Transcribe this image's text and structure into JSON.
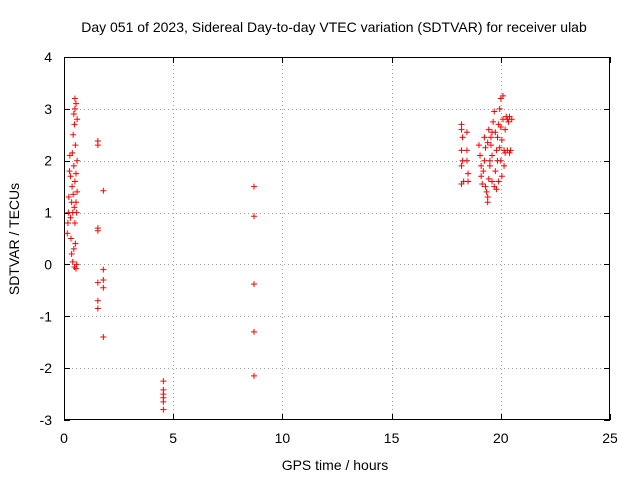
{
  "chart_data": {
    "type": "scatter",
    "title": "Day 051 of 2023, Sidereal Day-to-day VTEC variation (SDTVAR) for receiver ulab",
    "xlabel": "GPS time / hours",
    "ylabel": "SDTVAR / TECUs",
    "xlim": [
      0,
      25
    ],
    "ylim": [
      -3,
      4
    ],
    "xticks": [
      "0",
      "5",
      "10",
      "15",
      "20",
      "25"
    ],
    "yticks": [
      "-3",
      "-2",
      "-1",
      "0",
      "1",
      "2",
      "3",
      "4"
    ],
    "grid": true,
    "marker": "+",
    "color": "#ff0000",
    "series": [
      {
        "name": "SDTVAR",
        "points": [
          [
            0.15,
            0.6
          ],
          [
            0.18,
            0.8
          ],
          [
            0.2,
            1.0
          ],
          [
            0.22,
            1.3
          ],
          [
            0.25,
            1.8
          ],
          [
            0.27,
            2.1
          ],
          [
            0.3,
            1.7
          ],
          [
            0.3,
            0.9
          ],
          [
            0.32,
            0.5
          ],
          [
            0.35,
            0.2
          ],
          [
            0.35,
            1.2
          ],
          [
            0.37,
            1.5
          ],
          [
            0.38,
            2.15
          ],
          [
            0.4,
            0.05
          ],
          [
            0.4,
            1.0
          ],
          [
            0.42,
            1.35
          ],
          [
            0.42,
            2.5
          ],
          [
            0.45,
            0.3
          ],
          [
            0.45,
            1.9
          ],
          [
            0.45,
            2.9
          ],
          [
            0.47,
            1.1
          ],
          [
            0.48,
            2.7
          ],
          [
            0.48,
            -0.05
          ],
          [
            0.5,
            0.8
          ],
          [
            0.5,
            1.6
          ],
          [
            0.5,
            3.0
          ],
          [
            0.5,
            3.2
          ],
          [
            0.52,
            0.4
          ],
          [
            0.52,
            2.3
          ],
          [
            0.55,
            1.2
          ],
          [
            0.55,
            1.75
          ],
          [
            0.55,
            -0.08
          ],
          [
            0.55,
            3.1
          ],
          [
            0.58,
            0.0
          ],
          [
            0.58,
            1.0
          ],
          [
            0.6,
            2.0
          ],
          [
            0.6,
            2.8
          ],
          [
            0.6,
            1.4
          ],
          [
            1.55,
            2.38
          ],
          [
            1.55,
            2.3
          ],
          [
            1.55,
            0.7
          ],
          [
            1.55,
            0.65
          ],
          [
            1.55,
            -0.35
          ],
          [
            1.55,
            -0.7
          ],
          [
            1.55,
            -0.85
          ],
          [
            1.8,
            1.42
          ],
          [
            1.8,
            -0.1
          ],
          [
            1.8,
            -0.3
          ],
          [
            1.8,
            -0.45
          ],
          [
            1.8,
            -1.4
          ],
          [
            4.55,
            -2.25
          ],
          [
            4.55,
            -2.42
          ],
          [
            4.55,
            -2.5
          ],
          [
            4.55,
            -2.57
          ],
          [
            4.55,
            -2.65
          ],
          [
            4.55,
            -2.8
          ],
          [
            8.7,
            1.5
          ],
          [
            8.7,
            0.93
          ],
          [
            8.7,
            -0.38
          ],
          [
            8.7,
            -1.3
          ],
          [
            8.7,
            -2.15
          ],
          [
            18.2,
            2.7
          ],
          [
            18.2,
            2.6
          ],
          [
            18.25,
            2.45
          ],
          [
            18.2,
            2.2
          ],
          [
            18.25,
            2.0
          ],
          [
            18.2,
            1.9
          ],
          [
            18.2,
            1.55
          ],
          [
            18.3,
            1.6
          ],
          [
            18.45,
            2.55
          ],
          [
            18.45,
            2.2
          ],
          [
            18.45,
            2.0
          ],
          [
            18.5,
            1.75
          ],
          [
            18.5,
            1.6
          ],
          [
            19.0,
            2.3
          ],
          [
            19.05,
            2.1
          ],
          [
            19.1,
            1.9
          ],
          [
            19.1,
            1.7
          ],
          [
            19.15,
            1.55
          ],
          [
            19.2,
            1.8
          ],
          [
            19.25,
            2.0
          ],
          [
            19.3,
            2.25
          ],
          [
            19.3,
            1.5
          ],
          [
            19.35,
            1.4
          ],
          [
            19.4,
            1.3
          ],
          [
            19.4,
            1.2
          ],
          [
            19.45,
            1.65
          ],
          [
            19.5,
            2.0
          ],
          [
            19.55,
            2.3
          ],
          [
            19.6,
            2.55
          ],
          [
            19.6,
            1.6
          ],
          [
            19.65,
            2.75
          ],
          [
            19.7,
            2.95
          ],
          [
            19.7,
            1.5
          ],
          [
            19.75,
            1.8
          ],
          [
            19.8,
            2.2
          ],
          [
            19.8,
            1.45
          ],
          [
            19.85,
            2.45
          ],
          [
            19.9,
            2.7
          ],
          [
            19.9,
            1.6
          ],
          [
            19.95,
            3.0
          ],
          [
            20.0,
            3.2
          ],
          [
            20.0,
            2.0
          ],
          [
            20.05,
            2.4
          ],
          [
            20.05,
            1.7
          ],
          [
            20.1,
            3.25
          ],
          [
            20.1,
            2.8
          ],
          [
            20.15,
            2.2
          ],
          [
            20.15,
            1.9
          ],
          [
            20.2,
            2.6
          ],
          [
            20.2,
            2.15
          ],
          [
            20.25,
            2.85
          ],
          [
            20.3,
            2.8
          ],
          [
            20.3,
            2.2
          ],
          [
            20.35,
            2.75
          ],
          [
            20.4,
            2.85
          ],
          [
            20.4,
            2.15
          ],
          [
            20.45,
            2.2
          ],
          [
            20.5,
            2.8
          ],
          [
            19.5,
            1.9
          ],
          [
            19.6,
            2.1
          ],
          [
            19.55,
            2.45
          ],
          [
            19.75,
            2.55
          ],
          [
            19.85,
            2.0
          ],
          [
            19.95,
            2.25
          ],
          [
            20.0,
            2.65
          ],
          [
            19.4,
            2.35
          ],
          [
            19.25,
            2.45
          ],
          [
            19.45,
            2.6
          ]
        ]
      }
    ]
  }
}
